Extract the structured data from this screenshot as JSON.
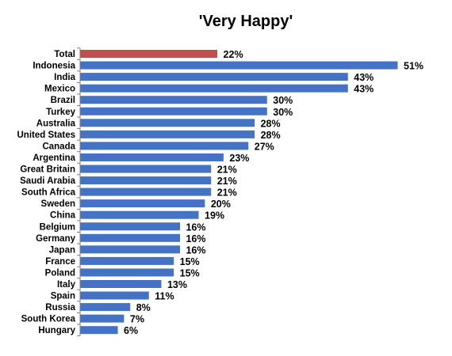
{
  "chart_data": {
    "type": "bar",
    "orientation": "horizontal",
    "title": "'Very Happy'",
    "xlabel": "",
    "ylabel": "",
    "categories": [
      "Total",
      "Indonesia",
      "India",
      "Mexico",
      "Brazil",
      "Turkey",
      "Australia",
      "United States",
      "Canada",
      "Argentina",
      "Great Britain",
      "Saudi Arabia",
      "South Africa",
      "Sweden",
      "China",
      "Belgium",
      "Germany",
      "Japan",
      "France",
      "Poland",
      "Italy",
      "Spain",
      "Russia",
      "South Korea",
      "Hungary"
    ],
    "values": [
      22,
      51,
      43,
      43,
      30,
      30,
      28,
      28,
      27,
      23,
      21,
      21,
      21,
      20,
      19,
      16,
      16,
      16,
      15,
      15,
      13,
      11,
      8,
      7,
      6
    ],
    "value_labels": [
      "22%",
      "51%",
      "43%",
      "43%",
      "30%",
      "30%",
      "28%",
      "28%",
      "27%",
      "23%",
      "21%",
      "21%",
      "21%",
      "20%",
      "19%",
      "16%",
      "16%",
      "16%",
      "15%",
      "15%",
      "13%",
      "11%",
      "8%",
      "7%",
      "6%"
    ],
    "highlight_category": "Total",
    "colors": {
      "bar": "#4472C4",
      "highlight": "#C0504D",
      "axis": "#808080"
    },
    "xlim": [
      0,
      55
    ],
    "grid": false,
    "legend": "none"
  }
}
